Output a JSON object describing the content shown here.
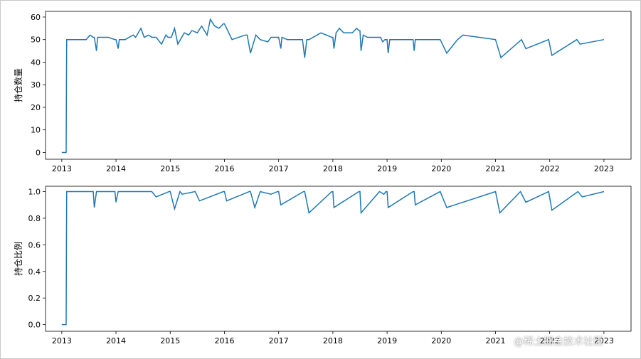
{
  "watermark": "@稀土掘金技术社区",
  "colors": {
    "line": "#1f77b4",
    "axis": "#000000"
  },
  "chart_data": [
    {
      "type": "line",
      "ylabel": "持仓数量",
      "xlabel": "",
      "xlim": [
        2012.7,
        2023.5
      ],
      "ylim": [
        -3,
        62.5
      ],
      "yticks": [
        0,
        10,
        20,
        30,
        40,
        50,
        60
      ],
      "ytick_labels": [
        "0",
        "10",
        "20",
        "30",
        "40",
        "50",
        "60"
      ],
      "xticks": [
        2013,
        2014,
        2015,
        2016,
        2017,
        2018,
        2019,
        2020,
        2021,
        2022,
        2023
      ],
      "xtick_labels": [
        "2013",
        "2014",
        "2015",
        "2016",
        "2017",
        "2018",
        "2019",
        "2020",
        "2021",
        "2022",
        "2023"
      ],
      "series": [
        {
          "name": "持仓数量",
          "x": [
            2013.0,
            2013.08,
            2013.09,
            2013.45,
            2013.52,
            2013.58,
            2013.6,
            2013.64,
            2013.66,
            2013.86,
            2013.98,
            2014.0,
            2014.04,
            2014.06,
            2014.17,
            2014.24,
            2014.32,
            2014.36,
            2014.46,
            2014.52,
            2014.6,
            2014.66,
            2014.74,
            2014.84,
            2014.92,
            2014.96,
            2015.02,
            2015.08,
            2015.14,
            2015.26,
            2015.34,
            2015.4,
            2015.5,
            2015.58,
            2015.68,
            2015.74,
            2015.82,
            2015.9,
            2015.98,
            2016.0,
            2016.04,
            2016.14,
            2016.38,
            2016.42,
            2016.48,
            2016.58,
            2016.66,
            2016.8,
            2016.86,
            2016.96,
            2017.0,
            2017.04,
            2017.06,
            2017.16,
            2017.44,
            2017.48,
            2017.52,
            2017.56,
            2017.78,
            2017.88,
            2017.98,
            2018.0,
            2018.02,
            2018.06,
            2018.12,
            2018.2,
            2018.36,
            2018.44,
            2018.48,
            2018.5,
            2018.52,
            2018.56,
            2018.64,
            2018.88,
            2018.92,
            2018.96,
            2019.0,
            2019.02,
            2019.05,
            2019.48,
            2019.5,
            2019.52,
            2019.98,
            2020.1,
            2020.3,
            2020.4,
            2021.0,
            2021.1,
            2021.48,
            2021.56,
            2021.98,
            2022.04,
            2022.5,
            2022.56,
            2023.0
          ],
          "y": [
            0,
            0,
            50,
            50,
            52,
            51,
            51,
            45,
            51,
            51,
            50,
            50,
            46,
            50,
            50,
            51,
            52,
            51,
            55,
            51,
            52,
            51,
            51,
            48,
            52,
            51,
            51,
            55,
            48,
            53,
            52,
            54,
            53,
            56,
            52,
            59,
            56,
            55,
            57,
            57,
            55,
            50,
            52,
            52,
            44,
            52,
            50,
            49,
            51,
            51,
            51,
            46,
            51,
            50,
            50,
            42,
            50,
            50,
            53,
            52,
            51,
            51,
            46,
            53,
            55,
            53,
            53,
            55,
            54,
            54,
            45,
            52,
            51,
            51,
            49,
            50,
            50,
            44,
            50,
            50,
            45,
            50,
            50,
            44,
            50,
            52,
            50,
            42,
            50,
            46,
            50,
            43,
            50,
            48,
            50
          ]
        }
      ]
    },
    {
      "type": "line",
      "ylabel": "持仓比例",
      "xlabel": "",
      "xlim": [
        2012.7,
        2023.5
      ],
      "ylim": [
        -0.05,
        1.04
      ],
      "yticks": [
        0.0,
        0.2,
        0.4,
        0.6,
        0.8,
        1.0
      ],
      "ytick_labels": [
        "0.0",
        "0.2",
        "0.4",
        "0.6",
        "0.8",
        "1.0"
      ],
      "xticks": [
        2013,
        2014,
        2015,
        2016,
        2017,
        2018,
        2019,
        2020,
        2021,
        2022,
        2023
      ],
      "xtick_labels": [
        "2013",
        "2014",
        "2015",
        "2016",
        "2017",
        "2018",
        "2019",
        "2020",
        "2021",
        "2022",
        "2023"
      ],
      "series": [
        {
          "name": "持仓比例",
          "x": [
            2013.0,
            2013.08,
            2013.09,
            2013.58,
            2013.6,
            2013.64,
            2013.98,
            2014.0,
            2014.04,
            2014.66,
            2014.74,
            2014.98,
            2015.0,
            2015.08,
            2015.18,
            2015.22,
            2015.46,
            2015.54,
            2015.98,
            2016.0,
            2016.04,
            2016.46,
            2016.48,
            2016.56,
            2016.66,
            2016.86,
            2016.98,
            2017.0,
            2017.04,
            2017.46,
            2017.48,
            2017.56,
            2017.98,
            2018.0,
            2018.02,
            2018.48,
            2018.5,
            2018.52,
            2018.86,
            2018.94,
            2018.98,
            2019.0,
            2019.02,
            2019.48,
            2019.5,
            2019.52,
            2019.98,
            2020.1,
            2021.0,
            2021.08,
            2021.46,
            2021.56,
            2021.98,
            2022.04,
            2022.52,
            2022.6,
            2023.0
          ],
          "y": [
            0.0,
            0.0,
            1.0,
            1.0,
            0.88,
            1.0,
            1.0,
            0.92,
            1.0,
            1.0,
            0.96,
            1.0,
            1.0,
            0.87,
            1.0,
            0.98,
            1.0,
            0.93,
            1.0,
            1.0,
            0.93,
            1.0,
            1.0,
            0.88,
            1.0,
            0.98,
            1.0,
            1.0,
            0.9,
            1.0,
            1.0,
            0.84,
            1.0,
            1.0,
            0.88,
            1.0,
            1.0,
            0.84,
            1.0,
            0.98,
            1.0,
            1.0,
            0.88,
            1.0,
            1.0,
            0.9,
            1.0,
            0.88,
            1.0,
            0.84,
            1.0,
            0.92,
            1.0,
            0.86,
            1.0,
            0.96,
            1.0
          ]
        }
      ]
    }
  ]
}
